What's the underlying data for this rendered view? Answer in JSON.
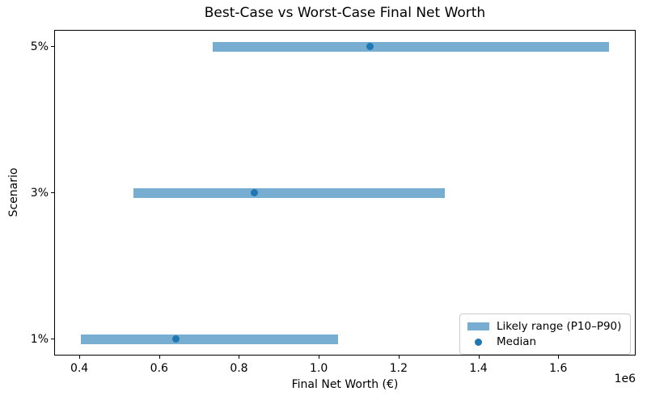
{
  "chart_data": {
    "type": "bar",
    "orientation": "horizontal",
    "title": "Best-Case vs Worst-Case Final Net Worth",
    "xlabel": "Final Net Worth (€)",
    "ylabel": "Scenario",
    "x_offset_label": "1e6",
    "categories": [
      "5%",
      "3%",
      "1%"
    ],
    "category_order": "top-to-bottom",
    "series": [
      {
        "name": "Likely range (P10–P90)",
        "role": "range-bar",
        "p10": [
          735000,
          535000,
          403000
        ],
        "p90": [
          1728000,
          1315000,
          1049000
        ]
      },
      {
        "name": "Median",
        "role": "point",
        "values": [
          1129000,
          838000,
          642000
        ]
      }
    ],
    "xlim": [
      337000,
      1794000
    ],
    "xticks": [
      400000,
      600000,
      800000,
      1000000,
      1200000,
      1400000,
      1600000
    ],
    "xtick_labels": [
      "0.4",
      "0.6",
      "0.8",
      "1.0",
      "1.2",
      "1.4",
      "1.6"
    ],
    "grid": false,
    "legend": {
      "location": "lower right",
      "entries": [
        "Likely range (P10–P90)",
        "Median"
      ]
    },
    "colors": {
      "range_bar": "#78ADD2",
      "median_point": "#1F77B4",
      "spine": "#000000",
      "text": "#000000"
    }
  }
}
